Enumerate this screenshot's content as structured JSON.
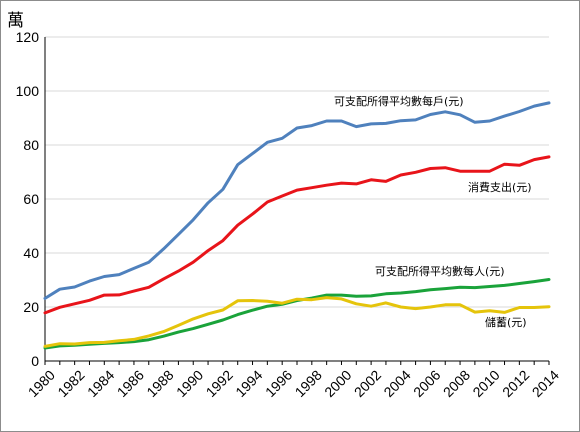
{
  "chart_data": {
    "type": "line",
    "unit_label": "萬",
    "ylim": [
      0,
      120
    ],
    "yticks": [
      0,
      20,
      40,
      60,
      80,
      100,
      120
    ],
    "xlim": [
      1980,
      2014
    ],
    "xticks": [
      1980,
      1982,
      1984,
      1986,
      1988,
      1990,
      1992,
      1994,
      1996,
      1998,
      2000,
      2002,
      2004,
      2006,
      2008,
      2010,
      2012,
      2014
    ],
    "grid": true,
    "x": [
      1980,
      1981,
      1982,
      1983,
      1984,
      1985,
      1986,
      1987,
      1988,
      1989,
      1990,
      1991,
      1992,
      1993,
      1994,
      1995,
      1996,
      1997,
      1998,
      1999,
      2000,
      2001,
      2002,
      2003,
      2004,
      2005,
      2006,
      2007,
      2008,
      2009,
      2010,
      2011,
      2012,
      2013,
      2014
    ],
    "series": [
      {
        "name": "可支配所得平均數每戶(元)",
        "color": "#4f81bd",
        "values": [
          23.2,
          26.6,
          27.4,
          29.6,
          31.3,
          32.0,
          34.3,
          36.6,
          41.5,
          46.9,
          52.3,
          58.6,
          63.6,
          72.7,
          76.8,
          81.0,
          82.5,
          86.3,
          87.2,
          88.9,
          88.9,
          86.8,
          87.8,
          88.0,
          89.0,
          89.3,
          91.3,
          92.3,
          91.2,
          88.4,
          88.9,
          90.7,
          92.4,
          94.4,
          95.6
        ]
      },
      {
        "name": "消費支出(元)",
        "color": "#e8141a",
        "values": [
          17.8,
          19.9,
          21.2,
          22.5,
          24.4,
          24.5,
          25.9,
          27.3,
          30.4,
          33.3,
          36.6,
          40.9,
          44.6,
          50.3,
          54.4,
          58.9,
          61.1,
          63.3,
          64.2,
          65.1,
          65.9,
          65.6,
          67.1,
          66.5,
          68.9,
          69.9,
          71.3,
          71.6,
          70.3,
          70.3,
          70.3,
          72.9,
          72.5,
          74.6,
          75.6
        ]
      },
      {
        "name": "可支配所得平均數每人(元)",
        "color": "#1aa33a",
        "values": [
          4.8,
          5.6,
          5.8,
          6.2,
          6.5,
          6.8,
          7.2,
          7.9,
          9.2,
          10.7,
          12.0,
          13.6,
          15.2,
          17.2,
          18.8,
          20.3,
          21.0,
          22.4,
          23.3,
          24.4,
          24.4,
          24.0,
          24.1,
          24.9,
          25.2,
          25.7,
          26.4,
          26.8,
          27.3,
          27.2,
          27.6,
          28.0,
          28.7,
          29.4,
          30.2
        ]
      },
      {
        "name": "儲蓄(元)",
        "color": "#e5c40b",
        "values": [
          5.4,
          6.4,
          6.3,
          6.8,
          6.9,
          7.5,
          8.0,
          9.3,
          10.9,
          13.2,
          15.6,
          17.5,
          18.9,
          22.3,
          22.4,
          22.1,
          21.4,
          22.9,
          22.7,
          23.5,
          23.0,
          21.2,
          20.3,
          21.5,
          20.0,
          19.4,
          20.0,
          20.8,
          20.8,
          18.1,
          18.6,
          18.0,
          19.8,
          19.8,
          20.1
        ]
      }
    ]
  }
}
